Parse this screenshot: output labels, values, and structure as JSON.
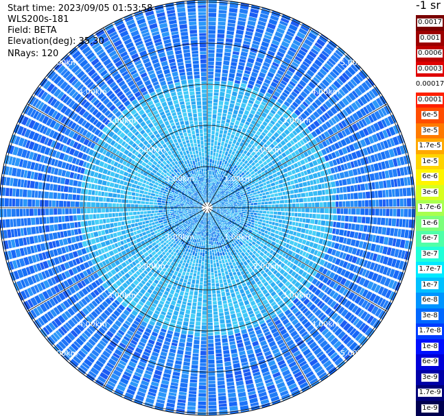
{
  "metadata": {
    "start_time": "Start time: 2023/09/05 01:53:58",
    "instrument": "WLS200s-181",
    "field": "Field: BETA",
    "elevation": "Elevation(deg): 35.30",
    "nrays": "NRays: 120"
  },
  "colorbar": {
    "title": "-1 sr",
    "segments": [
      {
        "label": "0.0017",
        "color": "#7a0000"
      },
      {
        "label": "0.001",
        "color": "#9c0000"
      },
      {
        "label": "0.0006",
        "color": "#bd0000"
      },
      {
        "label": "0.0003",
        "color": "#df0000"
      },
      {
        "label": "0.00017",
        "color": "#ffffff"
      },
      {
        "label": "0.0001",
        "color": "#ff2000"
      },
      {
        "label": "6e-5",
        "color": "#ff4d00"
      },
      {
        "label": "3e-5",
        "color": "#ff7a00"
      },
      {
        "label": "1.7e-5",
        "color": "#ffa800"
      },
      {
        "label": "1e-5",
        "color": "#ffd400"
      },
      {
        "label": "6e-6",
        "color": "#fff500"
      },
      {
        "label": "3e-6",
        "color": "#d8ff1f"
      },
      {
        "label": "1.7e-6",
        "color": "#a8ff4f"
      },
      {
        "label": "1e-6",
        "color": "#7bff7b"
      },
      {
        "label": "6e-7",
        "color": "#4fffa8"
      },
      {
        "label": "3e-7",
        "color": "#20ffd8"
      },
      {
        "label": "1.7e-7",
        "color": "#00eaff"
      },
      {
        "label": "1e-7",
        "color": "#00c0ff"
      },
      {
        "label": "6e-8",
        "color": "#0094ff"
      },
      {
        "label": "3e-8",
        "color": "#0068ff"
      },
      {
        "label": "1.7e-8",
        "color": "#003cff"
      },
      {
        "label": "1e-8",
        "color": "#0010ff"
      },
      {
        "label": "6e-9",
        "color": "#0000d8"
      },
      {
        "label": "3e-9",
        "color": "#0000a8"
      },
      {
        "label": "1.7e-9",
        "color": "#000078"
      },
      {
        "label": "1e-9",
        "color": "#000050"
      }
    ]
  },
  "range_rings": {
    "labels": [
      "1.00km",
      "2.00km",
      "3.00km",
      "4.00km",
      "5.00km",
      "6.00km"
    ]
  },
  "colors": {
    "far_range": [
      "#1868f8",
      "#1e74f8",
      "#2480fa",
      "#1c5cf4",
      "#288ef8",
      "#1670f6",
      "#2c98fa",
      "#207cf6"
    ],
    "mid_range": [
      "#30b0f4",
      "#40c8f8",
      "#38bcf6",
      "#2aa4f2",
      "#48d0f8",
      "#34b8f4"
    ],
    "near_range": [
      "#1890f0",
      "#2aa0f4",
      "#3cb8f6",
      "#1478ee",
      "#46c4f8"
    ],
    "grid_line": "#000000",
    "ray_gap": "#ffffff"
  }
}
